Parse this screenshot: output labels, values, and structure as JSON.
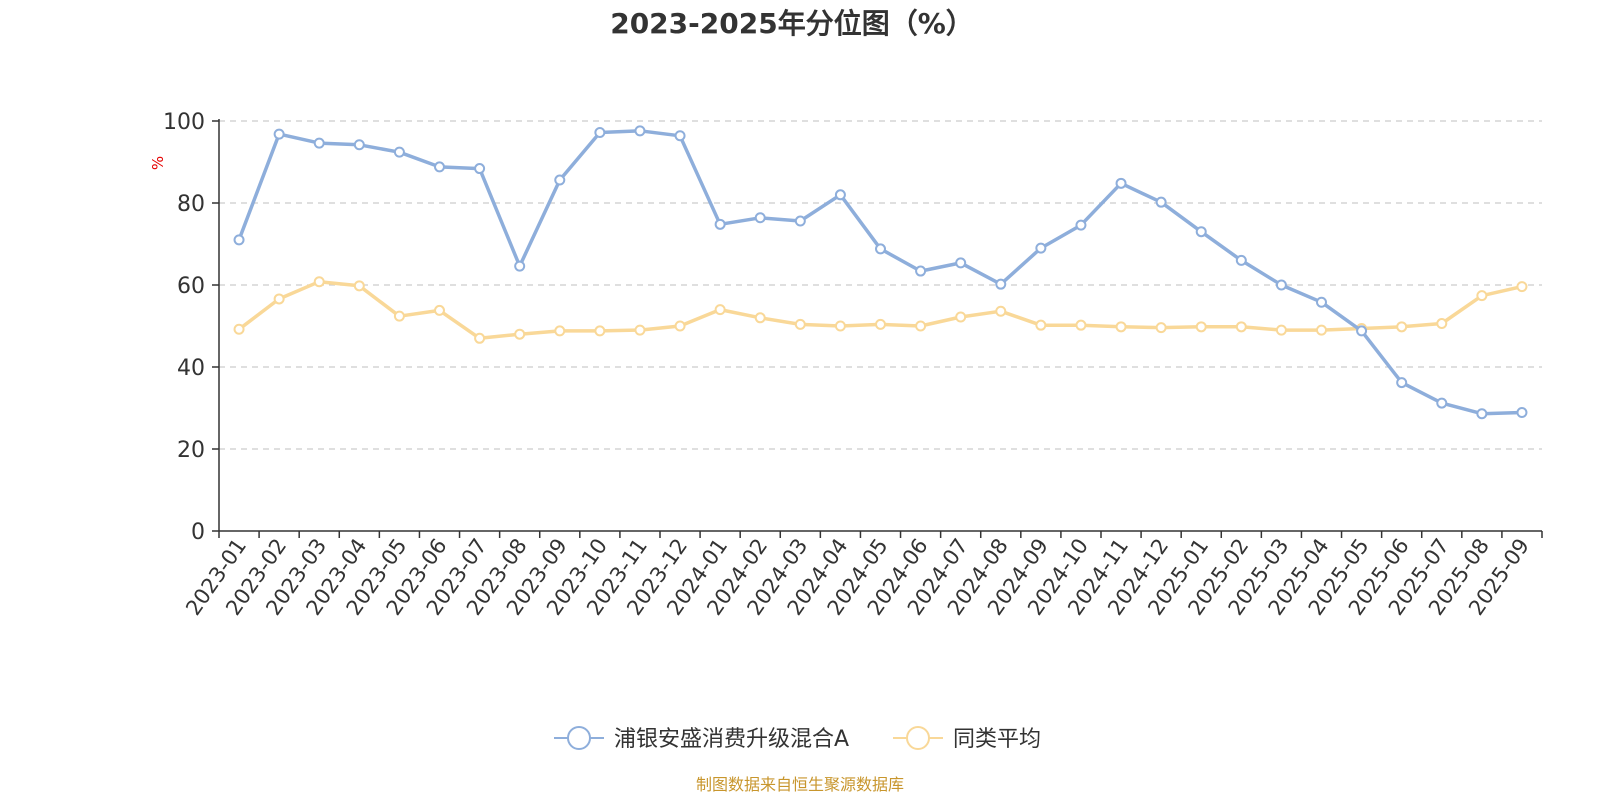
{
  "title": "2023-2025年分位图（%）",
  "source": "制图数据来自恒生聚源数据库",
  "chart_data": {
    "type": "line",
    "title": "2023-2025年分位图（%）",
    "ylabel": "%",
    "ylim": [
      0,
      100
    ],
    "yticks": [
      0,
      20,
      40,
      60,
      80,
      100
    ],
    "grid": true,
    "legend_position": "bottom-center",
    "categories": [
      "2023-01",
      "2023-02",
      "2023-03",
      "2023-04",
      "2023-05",
      "2023-06",
      "2023-07",
      "2023-08",
      "2023-09",
      "2023-10",
      "2023-11",
      "2023-12",
      "2024-01",
      "2024-02",
      "2024-03",
      "2024-04",
      "2024-05",
      "2024-06",
      "2024-07",
      "2024-08",
      "2024-09",
      "2024-10",
      "2024-11",
      "2024-12",
      "2025-01",
      "2025-02",
      "2025-03",
      "2025-04",
      "2025-05",
      "2025-06",
      "2025-07",
      "2025-08",
      "2025-09"
    ],
    "series": [
      {
        "name": "浦银安盛消费升级混合A",
        "color": "#8eaedb",
        "values": [
          71.0,
          96.8,
          94.6,
          94.2,
          92.4,
          88.8,
          88.4,
          64.6,
          85.6,
          97.2,
          97.6,
          96.4,
          74.8,
          76.4,
          75.6,
          82.0,
          68.8,
          63.4,
          65.4,
          60.2,
          69.0,
          74.6,
          84.8,
          80.2,
          73.0,
          66.0,
          60.0,
          55.8,
          48.8,
          36.2,
          31.2,
          28.6,
          28.9
        ]
      },
      {
        "name": "同类平均",
        "color": "#f9d898",
        "values": [
          49.2,
          56.6,
          60.8,
          59.8,
          52.4,
          53.8,
          47.0,
          48.0,
          48.8,
          48.8,
          49.0,
          50.0,
          54.0,
          52.0,
          50.4,
          50.0,
          50.4,
          50.0,
          52.2,
          53.6,
          50.2,
          50.2,
          49.8,
          49.6,
          49.8,
          49.8,
          49.0,
          49.0,
          49.4,
          49.8,
          50.6,
          57.4,
          59.6
        ]
      }
    ]
  }
}
